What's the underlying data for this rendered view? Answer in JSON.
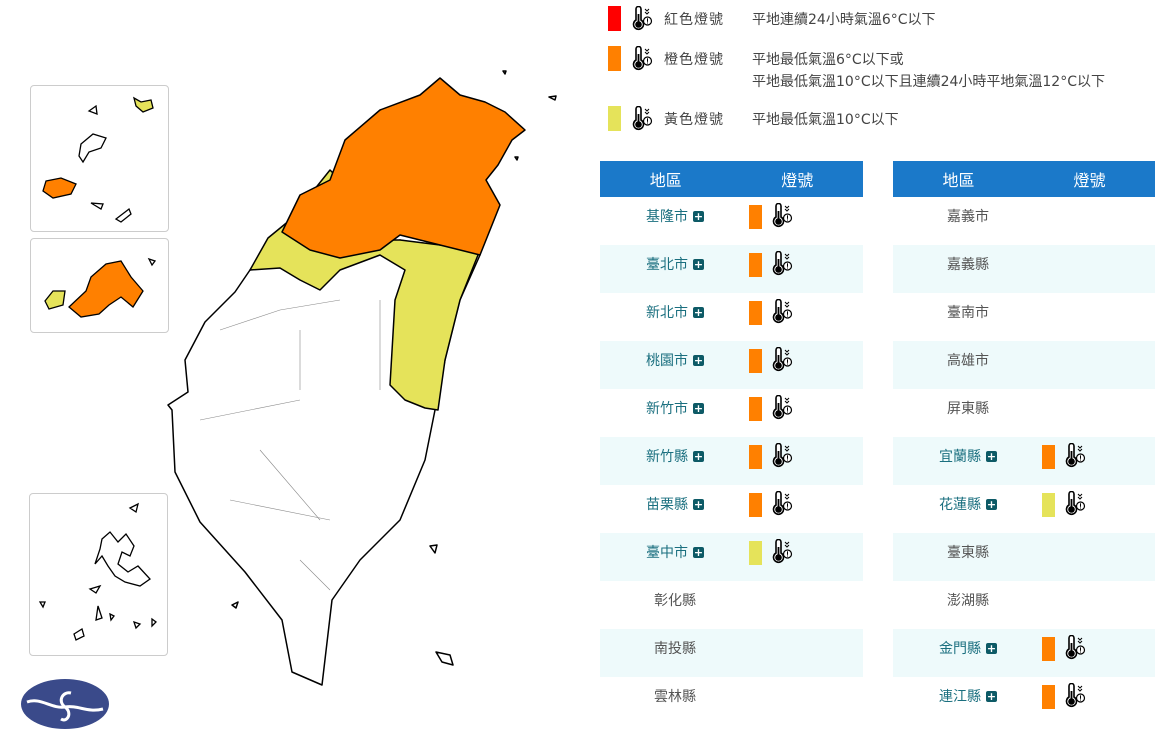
{
  "colors": {
    "red": "#ff0000",
    "orange": "#ff8000",
    "yellow": "#e5e35a",
    "header": "#1b79c9",
    "alt_row": "#eefafb"
  },
  "legend": [
    {
      "level": "red",
      "name": "紅色燈號",
      "desc": [
        "平地連續24小時氣溫6°C以下"
      ]
    },
    {
      "level": "orange",
      "name": "橙色燈號",
      "desc": [
        "平地最低氣溫6°C以下或",
        "平地最低氣溫10°C以下且連續24小時平地氣溫12°C以下"
      ]
    },
    {
      "level": "yellow",
      "name": "黃色燈號",
      "desc": [
        "平地最低氣溫10°C以下"
      ]
    }
  ],
  "table_headers": {
    "region": "地區",
    "signal": "燈號"
  },
  "left_table": [
    {
      "name": "基隆市",
      "level": "orange"
    },
    {
      "name": "臺北市",
      "level": "orange"
    },
    {
      "name": "新北市",
      "level": "orange"
    },
    {
      "name": "桃園市",
      "level": "orange"
    },
    {
      "name": "新竹市",
      "level": "orange"
    },
    {
      "name": "新竹縣",
      "level": "orange"
    },
    {
      "name": "苗栗縣",
      "level": "orange"
    },
    {
      "name": "臺中市",
      "level": "yellow"
    },
    {
      "name": "彰化縣",
      "level": null
    },
    {
      "name": "南投縣",
      "level": null
    },
    {
      "name": "雲林縣",
      "level": null
    }
  ],
  "right_table": [
    {
      "name": "嘉義市",
      "level": null
    },
    {
      "name": "嘉義縣",
      "level": null
    },
    {
      "name": "臺南市",
      "level": null
    },
    {
      "name": "高雄市",
      "level": null
    },
    {
      "name": "屏東縣",
      "level": null
    },
    {
      "name": "宜蘭縣",
      "level": "orange"
    },
    {
      "name": "花蓮縣",
      "level": "yellow"
    },
    {
      "name": "臺東縣",
      "level": null
    },
    {
      "name": "澎湖縣",
      "level": null
    },
    {
      "name": "金門縣",
      "level": "orange"
    },
    {
      "name": "連江縣",
      "level": "orange"
    }
  ],
  "icons": {
    "thermometer": "thermometer-cold-warning-icon",
    "plus": "expand-plus-icon",
    "logo": "cwa-logo"
  }
}
